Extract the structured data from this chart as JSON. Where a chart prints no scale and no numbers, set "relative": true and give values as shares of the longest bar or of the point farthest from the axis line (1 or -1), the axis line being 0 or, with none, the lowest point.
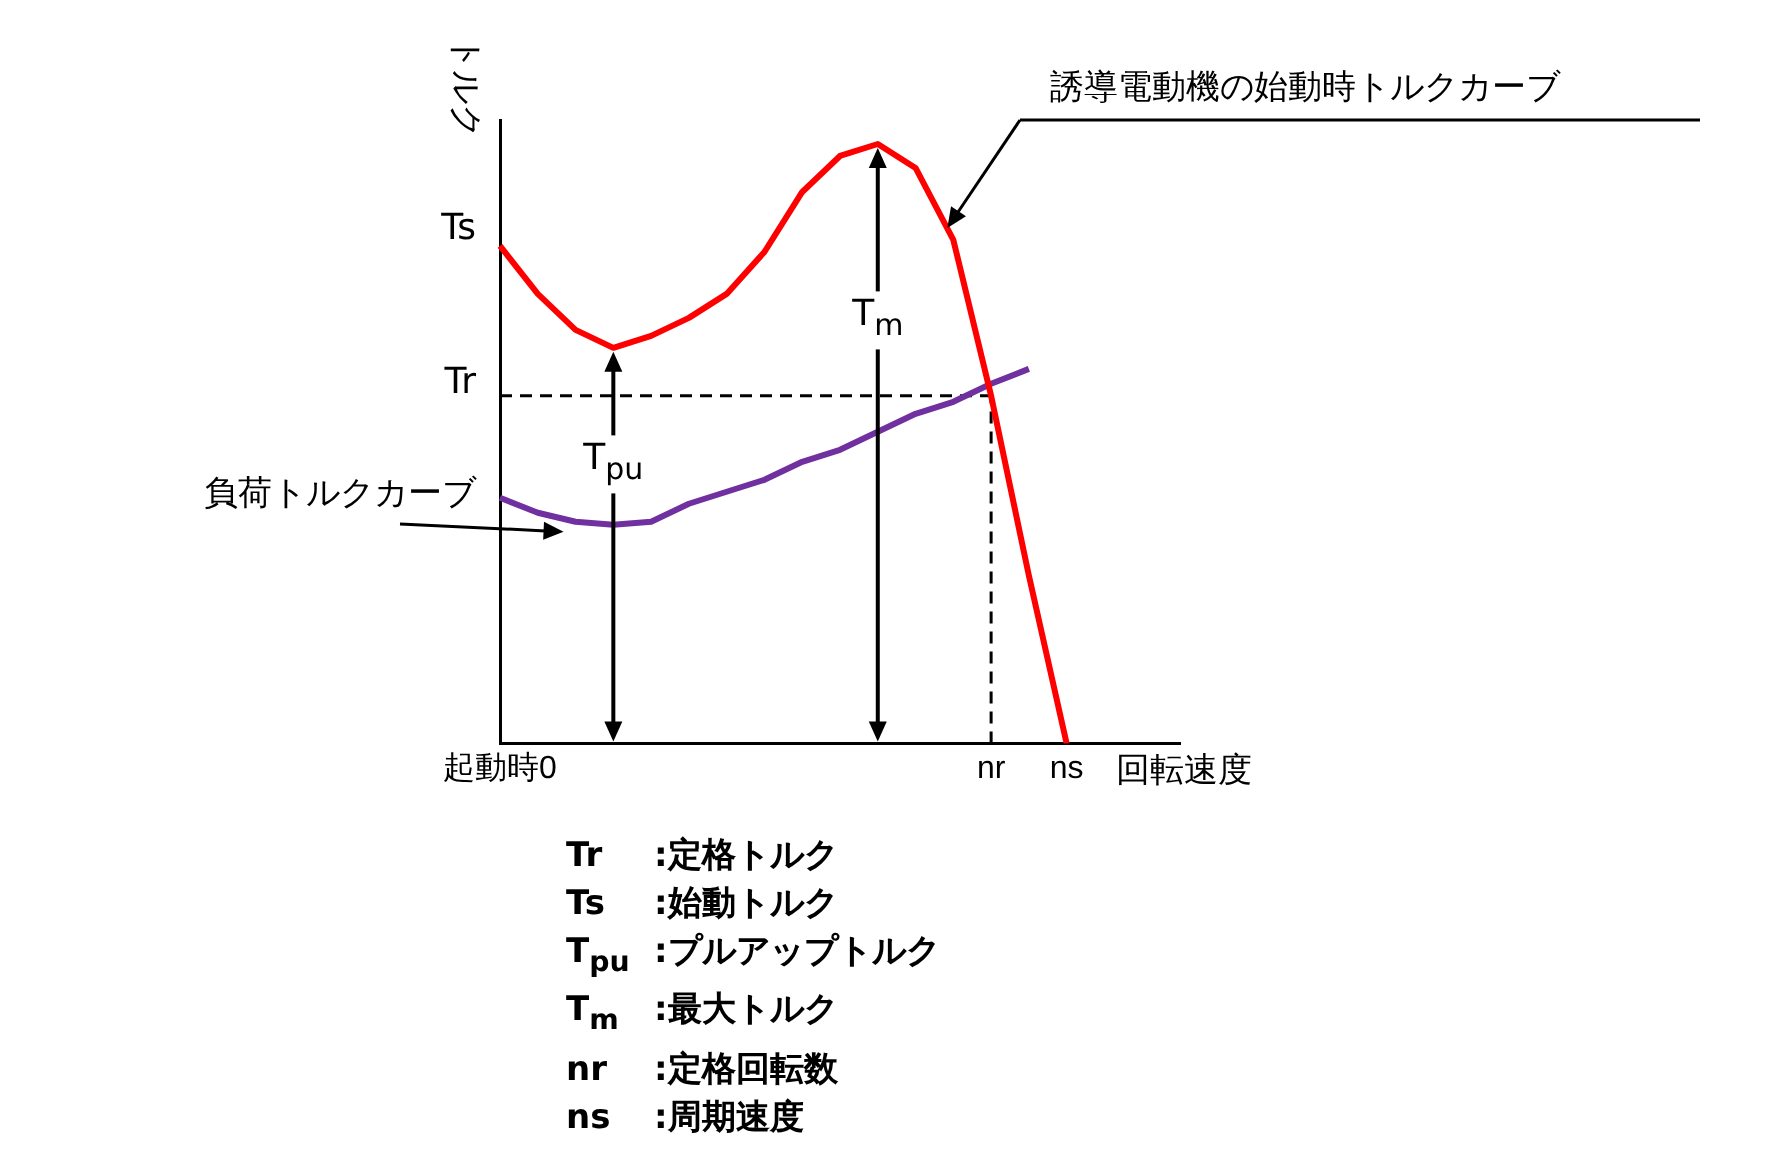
{
  "chart_data": {
    "type": "line",
    "relative": true,
    "xlabel": "回転速度",
    "ylabel": "トルク",
    "legend": false,
    "tick_labels": "x",
    "marker": "none",
    "categories": [
      "起動時0",
      null,
      null,
      null,
      null,
      null,
      null,
      null,
      null,
      null,
      null,
      null,
      null,
      "nr",
      null,
      "ns",
      null,
      null,
      null
    ],
    "series": [
      {
        "name": "誘導電動機の始動時トルクカーブ",
        "color": "#ff0000",
        "values": [
          0.83,
          0.75,
          0.69,
          0.66,
          0.68,
          0.71,
          0.75,
          0.82,
          0.92,
          0.98,
          1,
          0.96,
          0.84,
          0.58,
          0.28,
          0,
          null,
          null,
          null
        ]
      },
      {
        "name": "負荷トルクカーブ",
        "color": "#7030a0",
        "values": [
          0.41,
          0.385,
          0.37,
          0.365,
          0.37,
          0.4,
          0.42,
          0.44,
          0.47,
          0.49,
          0.52,
          0.55,
          0.57,
          0.6,
          0.625,
          null,
          null,
          null,
          null
        ]
      }
    ],
    "ref_lines": [
      {
        "axis": "y",
        "value": 0.58,
        "label": "Tr",
        "color": "#000000",
        "line_style": "dashed"
      },
      {
        "axis": "x",
        "value": "nr",
        "color": "#000000",
        "line_style": "dashed"
      }
    ],
    "annotations": [
      {
        "text": "Ts",
        "x": "起動時0",
        "y": 0.83
      },
      "T$_{m}$",
      "T$_{pu}$",
      "Tr :定格トルク",
      "Ts :始動トルク",
      "T$_{pu}$ :プルアップトルク",
      "T$_{m}$ :最大トルク",
      "nr :定格回転数",
      "ns :周期速度"
    ]
  }
}
